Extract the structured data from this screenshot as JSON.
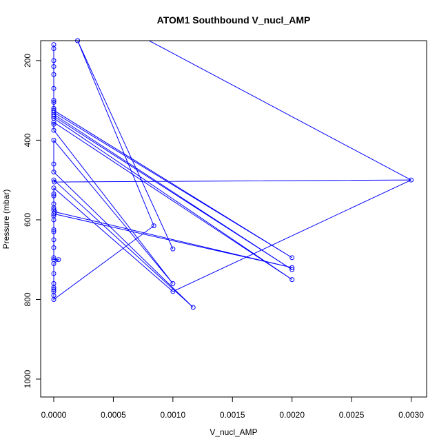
{
  "chart_data": {
    "type": "line",
    "title": "ATOM1 Southbound V_nucl_AMP",
    "xlabel": "V_nucl_AMP",
    "ylabel": "Pressure (mbar)",
    "xlim": [
      -0.00011,
      0.00313
    ],
    "ylim": [
      1045,
      150
    ],
    "y_reversed": true,
    "grid": false,
    "legend": "none",
    "xticks": [
      {
        "value": 0,
        "label": "0.0000"
      },
      {
        "value": 0.0005,
        "label": "0.0005"
      },
      {
        "value": 0.001,
        "label": "0.0010"
      },
      {
        "value": 0.0015,
        "label": "0.0015"
      },
      {
        "value": 0.002,
        "label": "0.0020"
      },
      {
        "value": 0.0025,
        "label": "0.0025"
      },
      {
        "value": 0.003,
        "label": "0.0030"
      }
    ],
    "yticks": [
      {
        "value": 200,
        "label": "200"
      },
      {
        "value": 400,
        "label": "400"
      },
      {
        "value": 600,
        "label": "600"
      },
      {
        "value": 800,
        "label": "800"
      },
      {
        "value": 1000,
        "label": "1000"
      }
    ],
    "series": [
      {
        "color": "#0000ff",
        "points": [
          [
            0,
            160
          ],
          [
            0,
            170
          ],
          [
            0,
            200
          ],
          [
            0,
            215
          ],
          [
            0,
            235
          ],
          [
            0,
            270
          ],
          [
            0,
            300
          ],
          [
            0,
            305
          ],
          [
            0,
            320
          ],
          [
            0,
            325
          ],
          [
            0.002,
            695
          ],
          [
            0,
            330
          ],
          [
            0,
            335
          ],
          [
            0.002,
            725
          ],
          [
            0,
            340
          ],
          [
            0,
            345
          ],
          [
            0.002,
            750
          ],
          [
            0,
            355
          ],
          [
            0,
            360
          ],
          [
            0,
            375
          ],
          [
            0.001,
            760
          ],
          [
            0,
            400
          ],
          [
            0,
            460
          ],
          [
            0,
            480
          ],
          [
            0.00117,
            820
          ],
          [
            0,
            500
          ],
          [
            5e-06,
            505
          ],
          [
            0.003,
            500
          ],
          [
            0.001,
            780
          ],
          [
            0,
            520
          ],
          [
            0,
            535
          ],
          [
            0,
            540
          ],
          [
            0,
            560
          ],
          [
            0,
            570
          ],
          [
            0,
            575
          ],
          [
            1e-05,
            580
          ],
          [
            0.002,
            720
          ],
          [
            0,
            585
          ],
          [
            0,
            590
          ],
          [
            0,
            600
          ],
          [
            0,
            625
          ],
          [
            0,
            630
          ],
          [
            0,
            650
          ],
          [
            0,
            670
          ],
          [
            0,
            695
          ],
          [
            0,
            700
          ],
          [
            4e-05,
            700
          ],
          [
            0,
            710
          ],
          [
            0,
            735
          ],
          [
            0,
            760
          ],
          [
            0,
            770
          ],
          [
            0,
            775
          ],
          [
            0,
            780
          ],
          [
            0,
            790
          ],
          [
            0,
            800
          ],
          [
            0.00084,
            615
          ],
          [
            0.0002,
            150
          ],
          [
            0.001,
            673
          ],
          [
            0.0002,
            150
          ]
        ],
        "open_ends": [
          {
            "from": [
              0.003,
              500
            ],
            "to": [
              0.0008,
              150
            ]
          }
        ]
      }
    ]
  }
}
